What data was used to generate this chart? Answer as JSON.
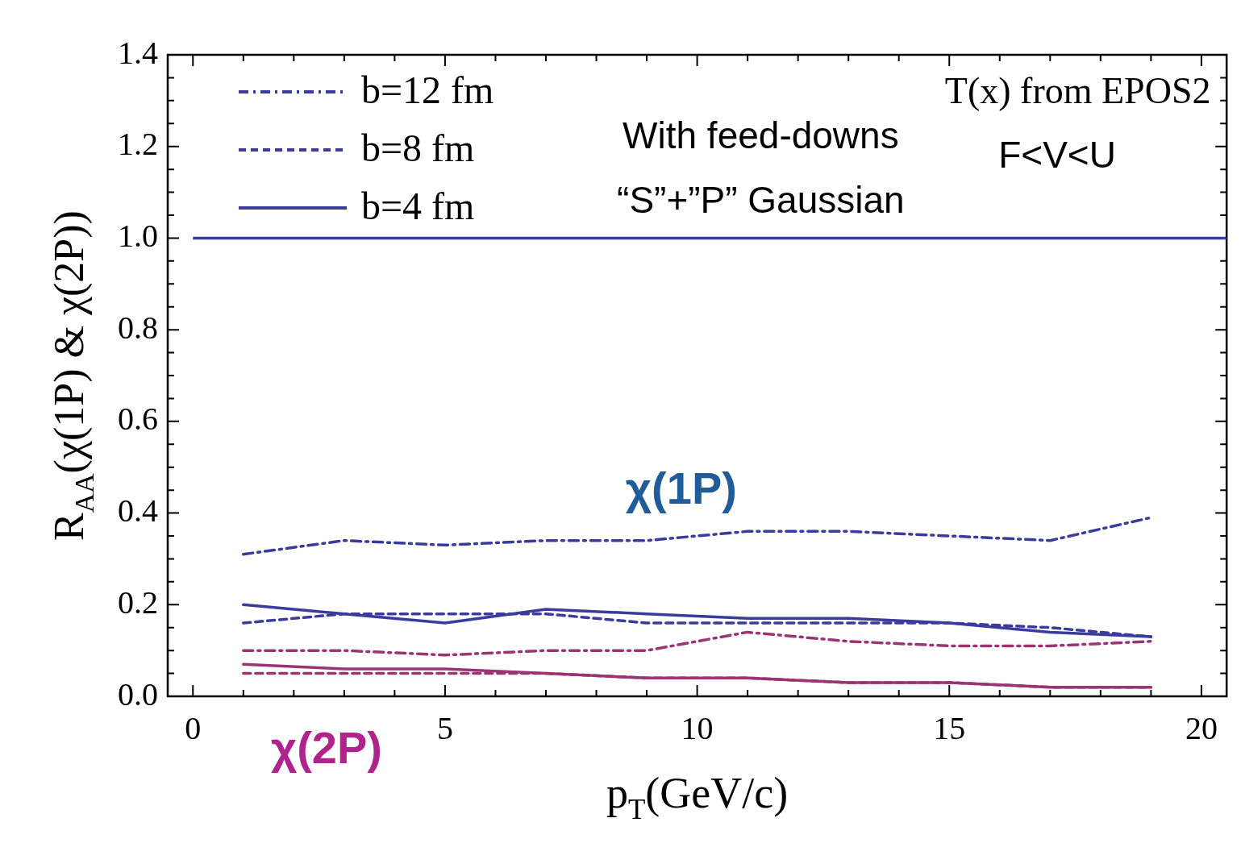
{
  "chart_data": {
    "type": "line",
    "xlabel": "p$_{T}$(GeV/c)",
    "ylabel": "R$_{AA}$(χ(1P) & χ(2P))",
    "x": [
      1,
      3,
      5,
      7,
      9,
      11,
      13,
      15,
      17,
      19
    ],
    "series": [
      {
        "name": "b=12 fm",
        "color": "#3b3b9e",
        "line_style": "dashdot",
        "values": [
          0.31,
          0.34,
          0.33,
          0.34,
          0.34,
          0.36,
          0.36,
          0.35,
          0.34,
          0.39
        ]
      },
      {
        "name": "b=8 fm",
        "color": "#3b3b9e",
        "line_style": "dashed",
        "values": [
          0.16,
          0.18,
          0.18,
          0.18,
          0.16,
          0.16,
          0.16,
          0.16,
          0.15,
          0.13
        ]
      },
      {
        "name": "b=4 fm",
        "color": "#3b3b9e",
        "line_style": "solid",
        "values": [
          0.2,
          0.18,
          0.16,
          0.19,
          0.18,
          0.17,
          0.17,
          0.16,
          0.14,
          0.13
        ]
      },
      {
        "color": "#9b3473",
        "line_style": "dashdot",
        "values": [
          0.1,
          0.1,
          0.09,
          0.1,
          0.1,
          0.14,
          0.12,
          0.11,
          0.11,
          0.12
        ]
      },
      {
        "color": "#9b3473",
        "line_style": "dashed",
        "values": [
          0.05,
          0.05,
          0.05,
          0.05,
          0.04,
          0.04,
          0.03,
          0.03,
          0.02,
          0.02
        ]
      },
      {
        "color": "#9b3473",
        "line_style": "solid",
        "values": [
          0.07,
          0.06,
          0.06,
          0.05,
          0.04,
          0.04,
          0.03,
          0.03,
          0.02,
          0.02
        ]
      }
    ],
    "ref_lines": [
      {
        "axis": "y",
        "value": 1.0,
        "color": "#3b3b9e",
        "line_style": "solid"
      }
    ],
    "annotations": [
      "With feed-downs",
      "“S”+”P” Gaussian",
      "T(x) from EPOS2",
      "F<V<U",
      "χ(1P)",
      "χ(2P)"
    ],
    "xlim": [
      -0.5,
      20.5
    ],
    "xticks": [
      0,
      5,
      10,
      15,
      20
    ],
    "ylim": [
      0,
      1.4
    ],
    "yticks": [
      {
        "value": 0,
        "label": "0.0"
      },
      {
        "value": 0.2,
        "label": "0.2"
      },
      {
        "value": 0.4,
        "label": "0.4"
      },
      {
        "value": 0.6,
        "label": "0.6"
      },
      {
        "value": 0.8,
        "label": "0.8"
      },
      {
        "value": 1.0,
        "label": "1.0"
      },
      {
        "value": 1.2,
        "label": "1.2"
      },
      {
        "value": 1.4,
        "label": "1.4"
      }
    ],
    "grid": false,
    "legend": "top left",
    "marker": "none"
  }
}
